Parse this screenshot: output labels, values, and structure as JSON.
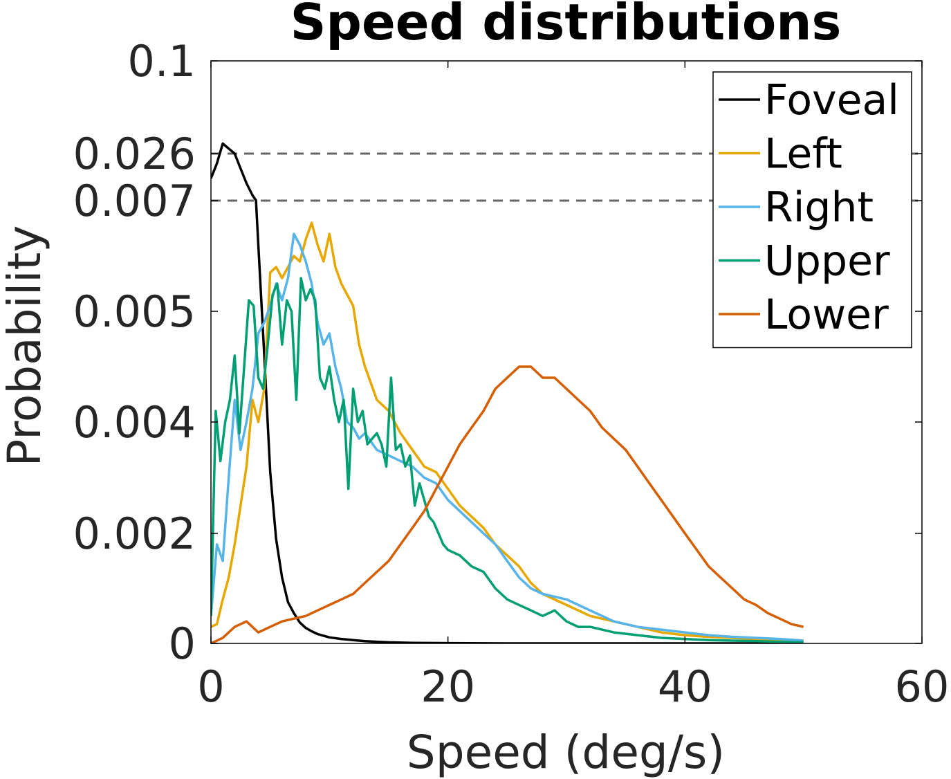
{
  "chart_data": {
    "type": "line",
    "title": "Speed distributions",
    "xlabel": "Speed (deg/s)",
    "ylabel": "Probability",
    "xlim": [
      0,
      60
    ],
    "x_ticks": [
      0,
      20,
      40,
      60
    ],
    "x_tick_labels": [
      "0",
      "20",
      "40",
      "60"
    ],
    "y_scale": "piecewise (axis break)",
    "y_ticks": [
      0,
      0.002,
      0.004,
      0.005,
      0.007,
      0.026,
      0.1
    ],
    "y_tick_labels": [
      "0",
      "0.002",
      "0.004",
      "0.005",
      "0.007",
      "0.026",
      "0.1"
    ],
    "reference_lines": [
      {
        "y": 0.026,
        "style": "dashed",
        "color": "#666666"
      },
      {
        "y": 0.007,
        "style": "dashed",
        "color": "#666666"
      }
    ],
    "legend_position": "top-right",
    "grid": false,
    "series": [
      {
        "name": "Foveal",
        "color": "#000000",
        "x": [
          0,
          0.5,
          1.0,
          1.5,
          2.0,
          2.5,
          3.0,
          3.5,
          3.8,
          4.0,
          4.5,
          5.0,
          5.5,
          6.0,
          6.5,
          7.0,
          7.5,
          8.0,
          8.5,
          9.0,
          9.5,
          10.0,
          11.0,
          12.0,
          13.0,
          14.0,
          15.0,
          17.0,
          20.0,
          25.0,
          30.0,
          40.0,
          50.0
        ],
        "y": [
          0.016,
          0.022,
          0.034,
          0.03,
          0.026,
          0.02,
          0.014,
          0.0092,
          0.0071,
          0.0062,
          0.0046,
          0.0031,
          0.0019,
          0.0012,
          0.00075,
          0.00055,
          0.00038,
          0.00028,
          0.00022,
          0.00017,
          0.00014,
          0.00011,
          8e-05,
          6e-05,
          4e-05,
          3e-05,
          2e-05,
          1e-05,
          5e-06,
          0.0,
          0.0,
          0.0,
          0.0
        ]
      },
      {
        "name": "Left",
        "color": "#E6A800",
        "x": [
          0,
          0.5,
          1,
          1.5,
          2,
          2.5,
          3,
          3.5,
          4,
          4.5,
          5,
          5.5,
          6,
          6.5,
          7,
          7.5,
          8,
          8.5,
          9,
          9.5,
          10,
          10.5,
          11,
          11.5,
          12,
          12.5,
          13,
          14,
          15,
          16,
          17,
          18,
          19,
          20,
          21,
          22,
          23,
          24,
          25,
          26,
          27,
          28,
          30,
          32,
          34,
          36,
          38,
          40,
          42,
          44,
          46,
          48,
          50
        ],
        "y": [
          0.0003,
          0.00035,
          0.0008,
          0.0012,
          0.0018,
          0.0025,
          0.0032,
          0.0042,
          0.004,
          0.0043,
          0.0057,
          0.0058,
          0.0056,
          0.0058,
          0.006,
          0.0059,
          0.0063,
          0.0066,
          0.0062,
          0.0059,
          0.0064,
          0.0058,
          0.0055,
          0.0053,
          0.0051,
          0.0047,
          0.0045,
          0.0042,
          0.0041,
          0.0038,
          0.0035,
          0.0032,
          0.0031,
          0.0028,
          0.0025,
          0.0023,
          0.0021,
          0.0018,
          0.0016,
          0.0014,
          0.0011,
          0.0009,
          0.0007,
          0.0005,
          0.0004,
          0.0003,
          0.0002,
          0.00015,
          0.00012,
          0.0001,
          8e-05,
          6e-05,
          5e-05
        ]
      },
      {
        "name": "Right",
        "color": "#56B4E9",
        "x": [
          0,
          0.5,
          1,
          1.5,
          2,
          2.5,
          3,
          3.5,
          4,
          4.5,
          5,
          5.5,
          6,
          6.5,
          7,
          7.5,
          8,
          8.5,
          9,
          9.5,
          10,
          10.5,
          11,
          11.5,
          12,
          12.5,
          13,
          14,
          15,
          16,
          17,
          18,
          19,
          20,
          21,
          22,
          23,
          24,
          25,
          26,
          27,
          28,
          30,
          32,
          34,
          36,
          38,
          40,
          42,
          44,
          46,
          48,
          50
        ],
        "y": [
          0.0005,
          0.0018,
          0.0015,
          0.003,
          0.0042,
          0.0035,
          0.004,
          0.0043,
          0.0048,
          0.0049,
          0.0051,
          0.0055,
          0.0052,
          0.0056,
          0.0064,
          0.0062,
          0.0059,
          0.0055,
          0.0049,
          0.0047,
          0.0048,
          0.0045,
          0.0043,
          0.004,
          0.0039,
          0.0037,
          0.0038,
          0.0035,
          0.0034,
          0.0033,
          0.0032,
          0.003,
          0.0029,
          0.0026,
          0.0024,
          0.0022,
          0.002,
          0.0018,
          0.0015,
          0.0012,
          0.001,
          0.0009,
          0.0008,
          0.0006,
          0.0004,
          0.0003,
          0.00025,
          0.0002,
          0.00015,
          0.00012,
          0.0001,
          8e-05,
          5e-05
        ]
      },
      {
        "name": "Upper",
        "color": "#009E73",
        "x": [
          0,
          0.4,
          0.8,
          1.2,
          1.6,
          2.0,
          2.4,
          2.8,
          3.2,
          3.6,
          4.0,
          4.4,
          4.8,
          5.2,
          5.6,
          6.0,
          6.4,
          6.8,
          7.2,
          7.6,
          8.0,
          8.4,
          8.8,
          9.2,
          9.6,
          10.0,
          10.4,
          10.8,
          11.2,
          11.6,
          12.0,
          12.4,
          12.8,
          13.2,
          13.6,
          14.0,
          14.4,
          14.8,
          15.2,
          15.6,
          16.0,
          16.4,
          16.8,
          17.2,
          17.6,
          18.0,
          18.4,
          18.8,
          19.2,
          19.6,
          20.0,
          21,
          22,
          23,
          24,
          25,
          26,
          27,
          28,
          29,
          30,
          31,
          32,
          34,
          36,
          38,
          40,
          42,
          44,
          46,
          48,
          50
        ],
        "y": [
          0.0005,
          0.0041,
          0.0033,
          0.004,
          0.0042,
          0.0046,
          0.0038,
          0.0045,
          0.0052,
          0.0051,
          0.0044,
          0.0043,
          0.0047,
          0.0053,
          0.0055,
          0.0047,
          0.0052,
          0.005,
          0.0042,
          0.0056,
          0.0052,
          0.0054,
          0.0052,
          0.0044,
          0.0043,
          0.0045,
          0.0042,
          0.004,
          0.0042,
          0.0028,
          0.0043,
          0.004,
          0.0041,
          0.0036,
          0.0037,
          0.0038,
          0.0036,
          0.0032,
          0.0044,
          0.0035,
          0.0036,
          0.0032,
          0.0034,
          0.0025,
          0.0029,
          0.0026,
          0.0023,
          0.0022,
          0.002,
          0.0018,
          0.0017,
          0.0016,
          0.0014,
          0.0013,
          0.001,
          0.0008,
          0.0007,
          0.0006,
          0.0005,
          0.0006,
          0.0004,
          0.0003,
          0.0003,
          0.0002,
          0.00015,
          0.0001,
          8e-05,
          6e-05,
          5e-05,
          4e-05,
          3e-05,
          2e-05
        ]
      },
      {
        "name": "Lower",
        "color": "#D55E00",
        "x": [
          0,
          1,
          2,
          3,
          4,
          5,
          6,
          7,
          8,
          9,
          10,
          11,
          12,
          13,
          14,
          15,
          16,
          17,
          18,
          19,
          20,
          21,
          22,
          23,
          24,
          25,
          26,
          27,
          28,
          29,
          30,
          31,
          32,
          33,
          34,
          35,
          36,
          37,
          38,
          39,
          40,
          41,
          42,
          43,
          44,
          45,
          46,
          47,
          48,
          49,
          50
        ],
        "y": [
          0.0,
          0.0001,
          0.0003,
          0.0004,
          0.0002,
          0.0003,
          0.0004,
          0.00045,
          0.0005,
          0.0006,
          0.0007,
          0.0008,
          0.0009,
          0.0011,
          0.0013,
          0.0015,
          0.0018,
          0.0021,
          0.0024,
          0.0028,
          0.0032,
          0.0036,
          0.0039,
          0.0041,
          0.0043,
          0.0044,
          0.0045,
          0.0045,
          0.0044,
          0.0044,
          0.0043,
          0.0042,
          0.0041,
          0.0039,
          0.0037,
          0.0035,
          0.0032,
          0.0029,
          0.0026,
          0.0023,
          0.002,
          0.0017,
          0.0014,
          0.0012,
          0.001,
          0.0008,
          0.0007,
          0.00055,
          0.00045,
          0.00035,
          0.0003
        ]
      }
    ]
  }
}
